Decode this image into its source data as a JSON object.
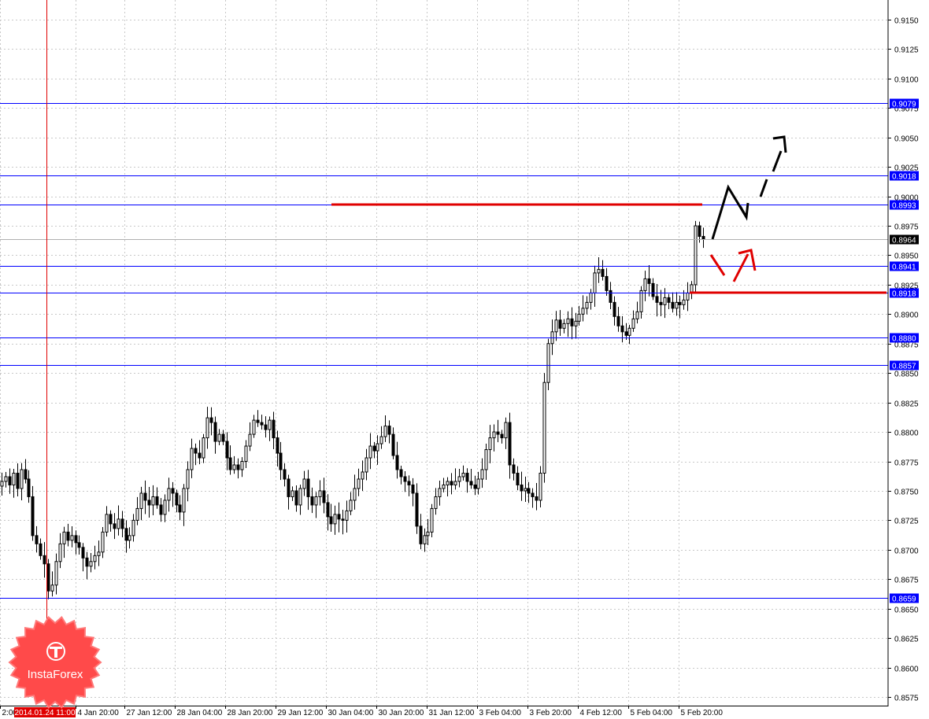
{
  "chart_data": {
    "type": "candlestick",
    "ylim": [
      0.8565,
      0.9165
    ],
    "grid": true,
    "y_ticks": [
      "0.9150",
      "0.9125",
      "0.9100",
      "0.9075",
      "0.9050",
      "0.9025",
      "0.9000",
      "0.8975",
      "0.8950",
      "0.8925",
      "0.8900",
      "0.8875",
      "0.8850",
      "0.8825",
      "0.8800",
      "0.8775",
      "0.8750",
      "0.8725",
      "0.8700",
      "0.8675",
      "0.8650",
      "0.8625",
      "0.8600",
      "0.8575"
    ],
    "x_ticks": [
      "2:00",
      "4 Jan 20:00",
      "27 Jan 12:00",
      "28 Jan 04:00",
      "28 Jan 20:00",
      "29 Jan 12:00",
      "30 Jan 04:00",
      "30 Jan 20:00",
      "31 Jan 12:00",
      "3 Feb 04:00",
      "3 Feb 20:00",
      "4 Feb 12:00",
      "5 Feb 04:00",
      "5 Feb 20:00"
    ],
    "cursor_label": "2014.01.24 11:00",
    "current_price": "0.8964",
    "levels": [
      "0.9079",
      "0.9018",
      "0.8993",
      "0.8941",
      "0.8918",
      "0.8880",
      "0.8857",
      "0.8659"
    ],
    "resistance_line": 0.8993,
    "support_line": 0.8918,
    "close_path": [
      0.8758,
      0.8762,
      0.8755,
      0.8765,
      0.8752,
      0.8768,
      0.876,
      0.8745,
      0.8712,
      0.8705,
      0.8695,
      0.8688,
      0.8665,
      0.867,
      0.869,
      0.8705,
      0.8715,
      0.8708,
      0.8712,
      0.8706,
      0.8702,
      0.8693,
      0.8686,
      0.869,
      0.8695,
      0.8698,
      0.8715,
      0.873,
      0.8722,
      0.8718,
      0.8726,
      0.8718,
      0.8708,
      0.8712,
      0.8725,
      0.8735,
      0.8748,
      0.8742,
      0.8738,
      0.8745,
      0.8738,
      0.873,
      0.8742,
      0.8752,
      0.8748,
      0.8738,
      0.8732,
      0.8752,
      0.8768,
      0.8786,
      0.8782,
      0.8778,
      0.8795,
      0.8812,
      0.8808,
      0.8792,
      0.8798,
      0.8792,
      0.8778,
      0.8768,
      0.8772,
      0.8768,
      0.8775,
      0.8788,
      0.8798,
      0.881,
      0.8808,
      0.8806,
      0.8802,
      0.881,
      0.8795,
      0.8782,
      0.8768,
      0.876,
      0.8745,
      0.875,
      0.8738,
      0.8752,
      0.876,
      0.8745,
      0.8738,
      0.8745,
      0.875,
      0.874,
      0.8728,
      0.8722,
      0.873,
      0.8726,
      0.8725,
      0.8733,
      0.8742,
      0.8752,
      0.876,
      0.8766,
      0.8778,
      0.8788,
      0.8784,
      0.879,
      0.8796,
      0.8805,
      0.8798,
      0.878,
      0.8768,
      0.8762,
      0.8758,
      0.8755,
      0.8748,
      0.872,
      0.8705,
      0.8712,
      0.8715,
      0.8735,
      0.8745,
      0.8752,
      0.8755,
      0.8758,
      0.8755,
      0.8758,
      0.8762,
      0.8765,
      0.8758,
      0.8755,
      0.8752,
      0.876,
      0.8768,
      0.8785,
      0.8795,
      0.88,
      0.8798,
      0.8795,
      0.8808,
      0.8772,
      0.8765,
      0.8755,
      0.875,
      0.8752,
      0.8748,
      0.8745,
      0.8742,
      0.8765,
      0.8842,
      0.8875,
      0.8885,
      0.8895,
      0.8888,
      0.8892,
      0.8896,
      0.889,
      0.8894,
      0.89,
      0.8905,
      0.891,
      0.8918,
      0.8935,
      0.8938,
      0.8932,
      0.892,
      0.891,
      0.8898,
      0.889,
      0.8885,
      0.8882,
      0.8888,
      0.8896,
      0.8902,
      0.892,
      0.893,
      0.8926,
      0.8915,
      0.891,
      0.8908,
      0.8914,
      0.891,
      0.8905,
      0.891,
      0.8908,
      0.8912,
      0.8918,
      0.8925,
      0.8975,
      0.8966,
      0.8964
    ],
    "colors": {
      "background": "#ffffff",
      "grid": "#c8c8c8",
      "level_line": "#0000ff",
      "level_label_bg": "#0000ff",
      "support_resistance": "#e00000",
      "cursor_line": "#e00000",
      "cursor_label_bg": "#e00000",
      "candle": "#000000",
      "current_price_bg": "#000000",
      "forecast_bullish": "#000000",
      "forecast_correction": "#e00000"
    }
  },
  "logo": {
    "text": "InstaForex",
    "color": "#ff3d3d"
  }
}
